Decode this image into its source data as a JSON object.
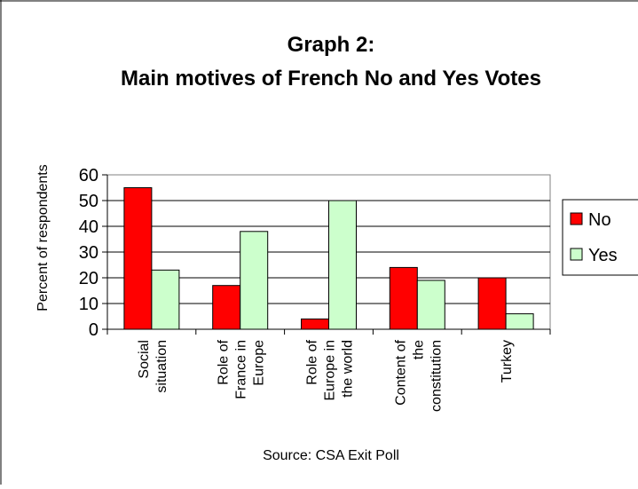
{
  "chart_data": {
    "type": "bar",
    "title_line1": "Graph 2:",
    "title_line2": "Main motives of French No and Yes Votes",
    "ylabel": "Percent of respondents",
    "xlabel": "Source: CSA Exit Poll",
    "ylim": [
      0,
      60
    ],
    "yticks": [
      0,
      10,
      20,
      30,
      40,
      50,
      60
    ],
    "grid": true,
    "legend_position": "right",
    "categories": [
      [
        "Social",
        "situation"
      ],
      [
        "Role of",
        "France in",
        "Europe"
      ],
      [
        "Role of",
        "Europe in",
        "the world"
      ],
      [
        "Content of",
        "the",
        "constitution"
      ],
      [
        "Turkey"
      ]
    ],
    "series": [
      {
        "name": "No",
        "color": "#ff0000",
        "values": [
          55,
          17,
          4,
          24,
          20
        ]
      },
      {
        "name": "Yes",
        "color": "#ccffcc",
        "values": [
          23,
          38,
          50,
          19,
          6
        ]
      }
    ]
  }
}
